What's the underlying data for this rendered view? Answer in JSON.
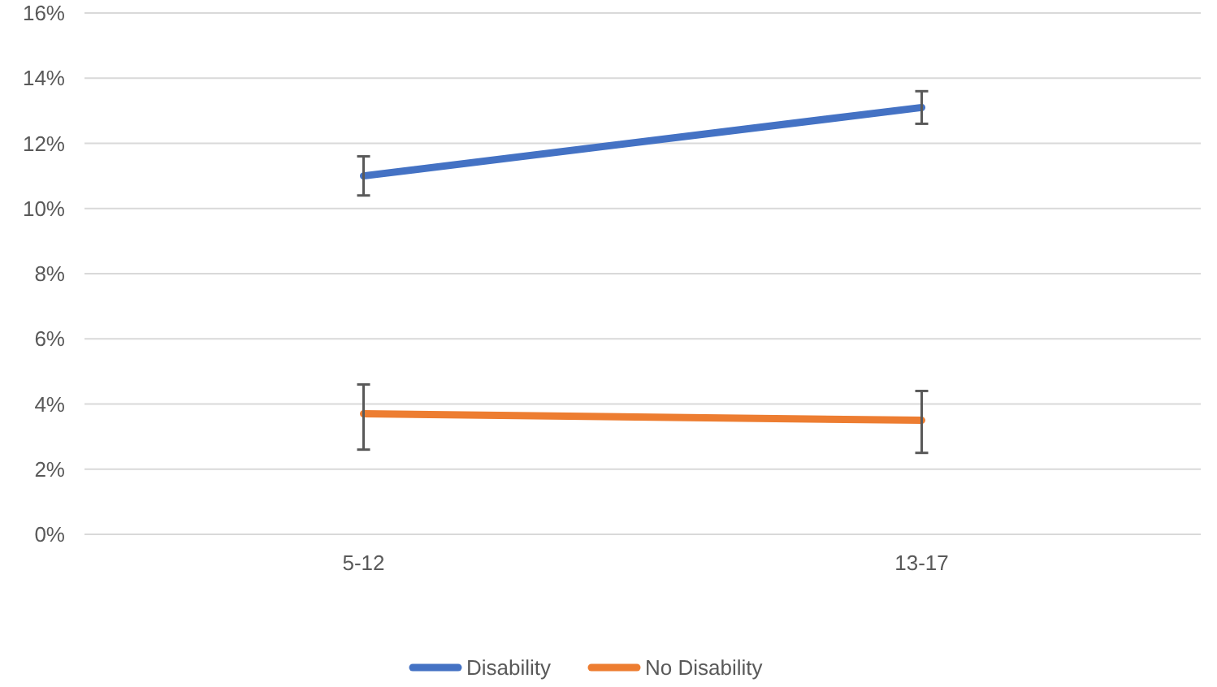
{
  "chart_data": {
    "type": "line",
    "categories": [
      "5-12",
      "13-17"
    ],
    "series": [
      {
        "name": "Disability",
        "color": "#4472c4",
        "values": [
          11.0,
          13.1
        ],
        "errors": [
          [
            10.4,
            11.6
          ],
          [
            12.6,
            13.6
          ]
        ]
      },
      {
        "name": "No Disability",
        "color": "#ed7d31",
        "values": [
          3.7,
          3.5
        ],
        "errors": [
          [
            2.6,
            4.6
          ],
          [
            2.5,
            4.4
          ]
        ]
      }
    ],
    "ylim": [
      0,
      16
    ],
    "yticks": [
      {
        "value": 0,
        "label": "0%"
      },
      {
        "value": 2,
        "label": "2%"
      },
      {
        "value": 4,
        "label": "4%"
      },
      {
        "value": 6,
        "label": "6%"
      },
      {
        "value": 8,
        "label": "8%"
      },
      {
        "value": 10,
        "label": "10%"
      },
      {
        "value": 12,
        "label": "12%"
      },
      {
        "value": 14,
        "label": "14%"
      },
      {
        "value": 16,
        "label": "16%"
      }
    ],
    "grid": "y",
    "legend": "bottom",
    "marker": "none",
    "line_style": "solid"
  }
}
